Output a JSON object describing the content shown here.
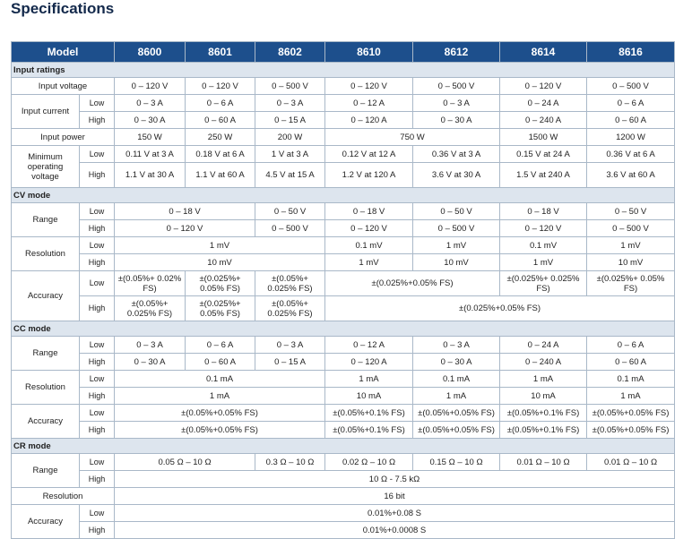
{
  "header": {
    "title": "Specifications"
  },
  "table": {
    "columns": [
      "Model",
      "8600",
      "8601",
      "8602",
      "8610",
      "8612",
      "8614",
      "8616"
    ],
    "sections": [
      {
        "title": "Input ratings",
        "groups": [
          {
            "label": "Input voltage",
            "cells": [
              "0 – 120 V",
              "0 – 120 V",
              "0 – 500 V",
              "0 – 120 V",
              "0 – 500 V",
              "0 – 120 V",
              "0 – 500 V"
            ]
          },
          {
            "label": "Input current",
            "rows": [
              {
                "name": "Low",
                "cells": [
                  "0 – 3 A",
                  "0 – 6 A",
                  "0 – 3 A",
                  "0 – 12 A",
                  "0 – 3 A",
                  "0 – 24 A",
                  "0 – 6 A"
                ]
              },
              {
                "name": "High",
                "cells": [
                  "0 – 30 A",
                  "0 – 60 A",
                  "0 – 15 A",
                  "0 – 120 A",
                  "0 – 30 A",
                  "0 – 240 A",
                  "0 – 60 A"
                ]
              }
            ]
          },
          {
            "label": "Input power",
            "cells": [
              "150 W",
              "250 W",
              "200 W",
              "750 W",
              null,
              "1500 W",
              "1200 W"
            ]
          },
          {
            "label": "Minimum operating voltage",
            "rows": [
              {
                "name": "Low",
                "cells": [
                  "0.11 V at 3 A",
                  "0.18 V at 6 A",
                  "1 V at 3 A",
                  "0.12 V at 12 A",
                  "0.36 V at 3 A",
                  "0.15 V at 24 A",
                  "0.36 V at 6 A"
                ]
              },
              {
                "name": "High",
                "cells": [
                  "1.1 V at 30 A",
                  "1.1 V at 60 A",
                  "4.5 V at 15 A",
                  "1.2 V at 120 A",
                  "3.6 V at 30 A",
                  "1.5 V at 240 A",
                  "3.6 V at 60 A"
                ]
              }
            ]
          }
        ]
      },
      {
        "title": "CV mode",
        "groups": [
          {
            "label": "Range",
            "rows": [
              {
                "name": "Low",
                "cells": [
                  "0 – 18 V",
                  null,
                  "0 – 50 V",
                  "0 – 18 V",
                  "0 – 50 V",
                  "0 – 18 V",
                  "0 – 50 V"
                ]
              },
              {
                "name": "High",
                "cells": [
                  "0 – 120 V",
                  null,
                  "0 – 500 V",
                  "0 – 120 V",
                  "0 – 500 V",
                  "0 – 120 V",
                  "0 – 500 V"
                ]
              }
            ]
          },
          {
            "label": "Resolution",
            "rows": [
              {
                "name": "Low",
                "cells": [
                  "1 mV",
                  null,
                  null,
                  "0.1 mV",
                  "1 mV",
                  "0.1 mV",
                  "1 mV"
                ]
              },
              {
                "name": "High",
                "cells": [
                  "10 mV",
                  null,
                  null,
                  "1 mV",
                  "10 mV",
                  "1 mV",
                  "10 mV"
                ]
              }
            ]
          },
          {
            "label": "Accuracy",
            "rows": [
              {
                "name": "Low",
                "cells": [
                  "±(0.05%+ 0.02% FS)",
                  "±(0.025%+ 0.05% FS)",
                  "±(0.05%+ 0.025% FS)",
                  "±(0.025%+0.05% FS)",
                  null,
                  "±(0.025%+ 0.025% FS)",
                  "±(0.025%+ 0.05% FS)"
                ]
              },
              {
                "name": "High",
                "cells": [
                  "±(0.05%+ 0.025% FS)",
                  "±(0.025%+ 0.05% FS)",
                  "±(0.05%+ 0.025% FS)",
                  "±(0.025%+0.05% FS)",
                  null,
                  null,
                  null
                ]
              }
            ]
          }
        ]
      },
      {
        "title": "CC mode",
        "groups": [
          {
            "label": "Range",
            "rows": [
              {
                "name": "Low",
                "cells": [
                  "0 – 3 A",
                  "0 – 6 A",
                  "0 – 3 A",
                  "0 – 12 A",
                  "0 – 3 A",
                  "0 – 24 A",
                  "0 – 6 A"
                ]
              },
              {
                "name": "High",
                "cells": [
                  "0 – 30 A",
                  "0 – 60 A",
                  "0 – 15 A",
                  "0 – 120 A",
                  "0 – 30 A",
                  "0 – 240 A",
                  "0 – 60 A"
                ]
              }
            ]
          },
          {
            "label": "Resolution",
            "rows": [
              {
                "name": "Low",
                "cells": [
                  "0.1 mA",
                  null,
                  null,
                  "1 mA",
                  "0.1 mA",
                  "1 mA",
                  "0.1 mA"
                ]
              },
              {
                "name": "High",
                "cells": [
                  "1 mA",
                  null,
                  null,
                  "10 mA",
                  "1 mA",
                  "10 mA",
                  "1 mA"
                ]
              }
            ]
          },
          {
            "label": "Accuracy",
            "rows": [
              {
                "name": "Low",
                "cells": [
                  "±(0.05%+0.05% FS)",
                  null,
                  null,
                  "±(0.05%+0.1% FS)",
                  "±(0.05%+0.05% FS)",
                  "±(0.05%+0.1% FS)",
                  "±(0.05%+0.05% FS)"
                ]
              },
              {
                "name": "High",
                "cells": [
                  "±(0.05%+0.05% FS)",
                  null,
                  null,
                  "±(0.05%+0.1% FS)",
                  "±(0.05%+0.05% FS)",
                  "±(0.05%+0.1% FS)",
                  "±(0.05%+0.05% FS)"
                ]
              }
            ]
          }
        ]
      },
      {
        "title": "CR mode",
        "groups": [
          {
            "label": "Range",
            "rows": [
              {
                "name": "Low",
                "cells": [
                  "0.05 Ω – 10 Ω",
                  null,
                  "0.3 Ω – 10 Ω",
                  "0.02 Ω – 10 Ω",
                  "0.15 Ω – 10 Ω",
                  "0.01 Ω – 10 Ω",
                  "0.01 Ω – 10 Ω"
                ]
              },
              {
                "name": "High",
                "cells": [
                  "10 Ω - 7.5 kΩ",
                  null,
                  null,
                  null,
                  null,
                  null,
                  null
                ]
              }
            ]
          },
          {
            "label": "Resolution",
            "cells": [
              "16 bit",
              null,
              null,
              null,
              null,
              null,
              null
            ]
          },
          {
            "label": "Accuracy",
            "rows": [
              {
                "name": "Low",
                "cells": [
                  "0.01%+0.08 S",
                  null,
                  null,
                  null,
                  null,
                  null,
                  null
                ]
              },
              {
                "name": "High",
                "cells": [
                  "0.01%+0.0008 S",
                  null,
                  null,
                  null,
                  null,
                  null,
                  null
                ]
              }
            ]
          }
        ]
      }
    ]
  }
}
